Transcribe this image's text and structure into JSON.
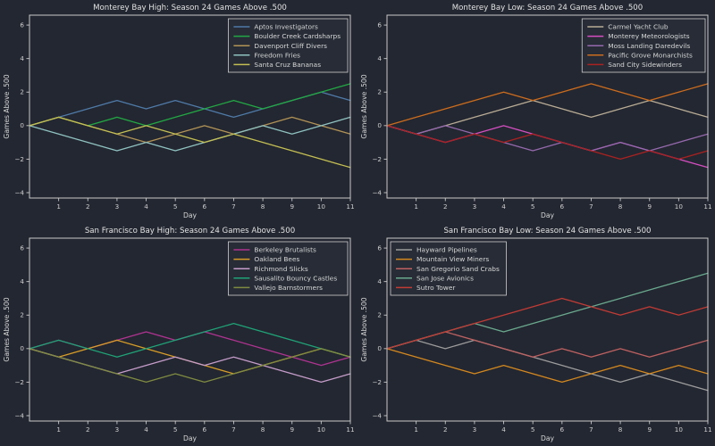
{
  "figure": {
    "background": "#232731",
    "spine_color": "#c9c9c9",
    "title_color": "#e2e2e2",
    "tick_color": "#cfcfcf",
    "label_color": "#d6d6d6",
    "legend_bg": "#272c36",
    "legend_border": "#cfcfcf"
  },
  "chart_data": [
    {
      "type": "line",
      "title": "Monterey Bay High: Season 24 Games Above .500",
      "xlabel": "Day",
      "ylabel": "Games Above .500",
      "xlim": [
        0,
        11
      ],
      "ylim": [
        -4.32,
        6.59
      ],
      "x_ticks": [
        1,
        2,
        3,
        4,
        5,
        6,
        7,
        8,
        9,
        10,
        11
      ],
      "y_ticks": [
        6,
        4,
        2,
        0,
        -2,
        -4
      ],
      "grid": false,
      "legend_position": "top-right",
      "x": [
        0,
        1,
        2,
        3,
        4,
        5,
        6,
        7,
        8,
        9,
        10,
        11
      ],
      "series": [
        {
          "name": "Aptos Investigators",
          "color": "#4f7aa8",
          "values": [
            0,
            0.5,
            1,
            1.5,
            1,
            1.5,
            1,
            0.5,
            1,
            1.5,
            2,
            1.5
          ]
        },
        {
          "name": "Boulder Creek Cardsharps",
          "color": "#22a844",
          "values": [
            0,
            0.5,
            0,
            0.5,
            0,
            0.5,
            1,
            1.5,
            1,
            1.5,
            2,
            2.5
          ]
        },
        {
          "name": "Davenport Cliff Divers",
          "color": "#b29356",
          "values": [
            0,
            0.5,
            0,
            -0.5,
            -1,
            -0.5,
            0,
            -0.5,
            0,
            0.5,
            0,
            -0.5
          ]
        },
        {
          "name": "Freedom Fries",
          "color": "#8fc2c1",
          "values": [
            0,
            -0.5,
            -1,
            -1.5,
            -1,
            -1.5,
            -1,
            -0.5,
            0,
            -0.5,
            0,
            0.5
          ]
        },
        {
          "name": "Santa Cruz Bananas",
          "color": "#c4bf52",
          "values": [
            0,
            0.5,
            0,
            -0.5,
            0,
            -0.5,
            -1,
            -0.5,
            -1,
            -1.5,
            -2,
            -2.5
          ]
        }
      ]
    },
    {
      "type": "line",
      "title": "Monterey Bay Low: Season 24 Games Above .500",
      "xlabel": "Day",
      "ylabel": "Games Above .500",
      "xlim": [
        0,
        11
      ],
      "ylim": [
        -4.32,
        6.59
      ],
      "x_ticks": [
        1,
        2,
        3,
        4,
        5,
        6,
        7,
        8,
        9,
        10,
        11
      ],
      "y_ticks": [
        6,
        4,
        2,
        0,
        -2,
        -4
      ],
      "grid": false,
      "legend_position": "top-right",
      "x": [
        0,
        1,
        2,
        3,
        4,
        5,
        6,
        7,
        8,
        9,
        10,
        11
      ],
      "series": [
        {
          "name": "Carmel Yacht Club",
          "color": "#b9ac95",
          "values": [
            0,
            -0.5,
            0,
            0.5,
            1,
            1.5,
            1,
            0.5,
            1,
            1.5,
            1,
            0.5
          ]
        },
        {
          "name": "Monterey Meteorologists",
          "color": "#d54ec1",
          "values": [
            0,
            -0.5,
            -1,
            -0.5,
            0,
            -0.5,
            -1,
            -1.5,
            -1,
            -1.5,
            -2,
            -2.5
          ]
        },
        {
          "name": "Moss Landing Daredevils",
          "color": "#9569ae",
          "values": [
            0,
            -0.5,
            0,
            -0.5,
            -1,
            -1.5,
            -1,
            -1.5,
            -1,
            -1.5,
            -1,
            -0.5
          ]
        },
        {
          "name": "Pacific Grove Monarchists",
          "color": "#cd6c1d",
          "values": [
            0,
            0.5,
            1,
            1.5,
            2,
            1.5,
            2,
            2.5,
            2,
            1.5,
            2,
            2.5
          ]
        },
        {
          "name": "Sand City Sidewinders",
          "color": "#ab2121",
          "values": [
            0,
            -0.5,
            -1,
            -0.5,
            -1,
            -0.5,
            -1,
            -1.5,
            -2,
            -1.5,
            -2,
            -1.5
          ]
        }
      ]
    },
    {
      "type": "line",
      "title": "San Francisco Bay High: Season 24 Games Above .500",
      "xlabel": "Day",
      "ylabel": "Games Above .500",
      "xlim": [
        0,
        11
      ],
      "ylim": [
        -4.32,
        6.59
      ],
      "x_ticks": [
        1,
        2,
        3,
        4,
        5,
        6,
        7,
        8,
        9,
        10,
        11
      ],
      "y_ticks": [
        6,
        4,
        2,
        0,
        -2,
        -4
      ],
      "grid": false,
      "legend_position": "top-right",
      "x": [
        0,
        1,
        2,
        3,
        4,
        5,
        6,
        7,
        8,
        9,
        10,
        11
      ],
      "series": [
        {
          "name": "Berkeley Brutalists",
          "color": "#ae3391",
          "values": [
            0,
            0.5,
            0,
            0.5,
            1,
            0.5,
            1,
            0.5,
            0,
            -0.5,
            -1,
            -0.5
          ]
        },
        {
          "name": "Oakland Bees",
          "color": "#d99d26",
          "values": [
            0,
            -0.5,
            0,
            0.5,
            0,
            -0.5,
            -1,
            -1.5,
            -1,
            -0.5,
            0,
            -0.5
          ]
        },
        {
          "name": "Richmond Slicks",
          "color": "#c59cca",
          "values": [
            0,
            -0.5,
            -1,
            -1.5,
            -1,
            -0.5,
            -1,
            -0.5,
            -1,
            -1.5,
            -2,
            -1.5
          ]
        },
        {
          "name": "Sausalito Bouncy Castles",
          "color": "#1fa377",
          "values": [
            0,
            0.5,
            0,
            -0.5,
            0,
            0.5,
            1,
            1.5,
            1,
            0.5,
            0,
            -0.5
          ]
        },
        {
          "name": "Vallejo Barnstormers",
          "color": "#7f8b41",
          "values": [
            0,
            -0.5,
            -1,
            -1.5,
            -2,
            -1.5,
            -2,
            -1.5,
            -1,
            -0.5,
            0,
            -0.5
          ]
        }
      ]
    },
    {
      "type": "line",
      "title": "San Francisco Bay Low: Season 24 Games Above .500",
      "xlabel": "Day",
      "ylabel": "Games Above .500",
      "xlim": [
        0,
        11
      ],
      "ylim": [
        -4.32,
        6.59
      ],
      "x_ticks": [
        1,
        2,
        3,
        4,
        5,
        6,
        7,
        8,
        9,
        10,
        11
      ],
      "y_ticks": [
        6,
        4,
        2,
        0,
        -2,
        -4
      ],
      "grid": false,
      "legend_position": "top-left",
      "x": [
        0,
        1,
        2,
        3,
        4,
        5,
        6,
        7,
        8,
        9,
        10,
        11
      ],
      "series": [
        {
          "name": "Hayward Pipelines",
          "color": "#9c9c9c",
          "values": [
            0,
            0.5,
            0,
            0.5,
            0,
            -0.5,
            -1,
            -1.5,
            -2,
            -1.5,
            -2,
            -2.5
          ]
        },
        {
          "name": "Mountain View Miners",
          "color": "#d5881e",
          "values": [
            0,
            -0.5,
            -1,
            -1.5,
            -1,
            -1.5,
            -2,
            -1.5,
            -1,
            -1.5,
            -1,
            -1.5
          ]
        },
        {
          "name": "San Gregorio Sand Crabs",
          "color": "#bf6161",
          "values": [
            0,
            0.5,
            1,
            0.5,
            0,
            -0.5,
            0,
            -0.5,
            0,
            -0.5,
            0,
            0.5
          ]
        },
        {
          "name": "San Jose Avionics",
          "color": "#6aa98e",
          "values": [
            0,
            0.5,
            1,
            1.5,
            1,
            1.5,
            2,
            2.5,
            3,
            3.5,
            4,
            4.5
          ]
        },
        {
          "name": "Sutro Tower",
          "color": "#c13b35",
          "values": [
            0,
            0.5,
            1,
            1.5,
            2,
            2.5,
            3,
            2.5,
            2,
            2.5,
            2,
            2.5
          ]
        }
      ]
    }
  ]
}
